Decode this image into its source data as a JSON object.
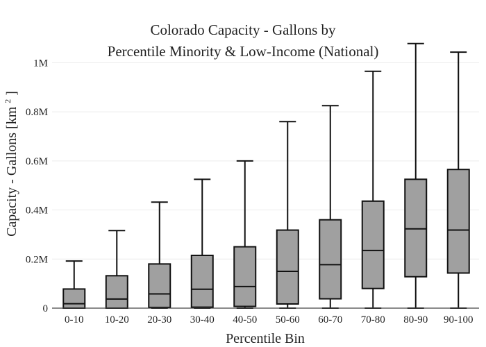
{
  "chart_data": {
    "type": "box",
    "title_lines": [
      "Colorado Capacity - Gallons by",
      "Percentile Minority & Low-Income (National)"
    ],
    "xlabel": "Percentile Bin",
    "ylabel": "Capacity - Gallons  [km",
    "ylabel_superscript": "2",
    "ylabel_suffix": "]",
    "categories": [
      "0-10",
      "10-20",
      "20-30",
      "30-40",
      "40-50",
      "50-60",
      "60-70",
      "70-80",
      "80-90",
      "90-100"
    ],
    "boxes": [
      {
        "category": "0-10",
        "min": 0,
        "q1": 0,
        "median": 18000,
        "q3": 78000,
        "max": 192000
      },
      {
        "category": "10-20",
        "min": 0,
        "q1": 0,
        "median": 37000,
        "q3": 132000,
        "max": 316000
      },
      {
        "category": "20-30",
        "min": 0,
        "q1": 3000,
        "median": 58000,
        "q3": 180000,
        "max": 432000
      },
      {
        "category": "30-40",
        "min": 0,
        "q1": 4000,
        "median": 77000,
        "q3": 215000,
        "max": 525000
      },
      {
        "category": "40-50",
        "min": 0,
        "q1": 7000,
        "median": 88000,
        "q3": 250000,
        "max": 600000
      },
      {
        "category": "50-60",
        "min": 0,
        "q1": 17000,
        "median": 150000,
        "q3": 318000,
        "max": 760000
      },
      {
        "category": "60-70",
        "min": 0,
        "q1": 38000,
        "median": 177000,
        "q3": 360000,
        "max": 825000
      },
      {
        "category": "70-80",
        "min": 0,
        "q1": 80000,
        "median": 235000,
        "q3": 436000,
        "max": 965000
      },
      {
        "category": "80-90",
        "min": 0,
        "q1": 128000,
        "median": 323000,
        "q3": 525000,
        "max": 1078000
      },
      {
        "category": "90-100",
        "min": 0,
        "q1": 143000,
        "median": 318000,
        "q3": 565000,
        "max": 1043000
      }
    ],
    "ylim": [
      0,
      1100000
    ],
    "y_ticks": [
      {
        "value": 0,
        "label": "0"
      },
      {
        "value": 200000,
        "label": "0.2M"
      },
      {
        "value": 400000,
        "label": "0.4M"
      },
      {
        "value": 600000,
        "label": "0.6M"
      },
      {
        "value": 800000,
        "label": "0.8M"
      },
      {
        "value": 1000000,
        "label": "1M"
      }
    ],
    "grid": true,
    "colors": {
      "box_fill": "#a0a0a0",
      "box_stroke": "#111111",
      "grid": "#ececec",
      "text": "#222222",
      "background": "#ffffff"
    }
  }
}
